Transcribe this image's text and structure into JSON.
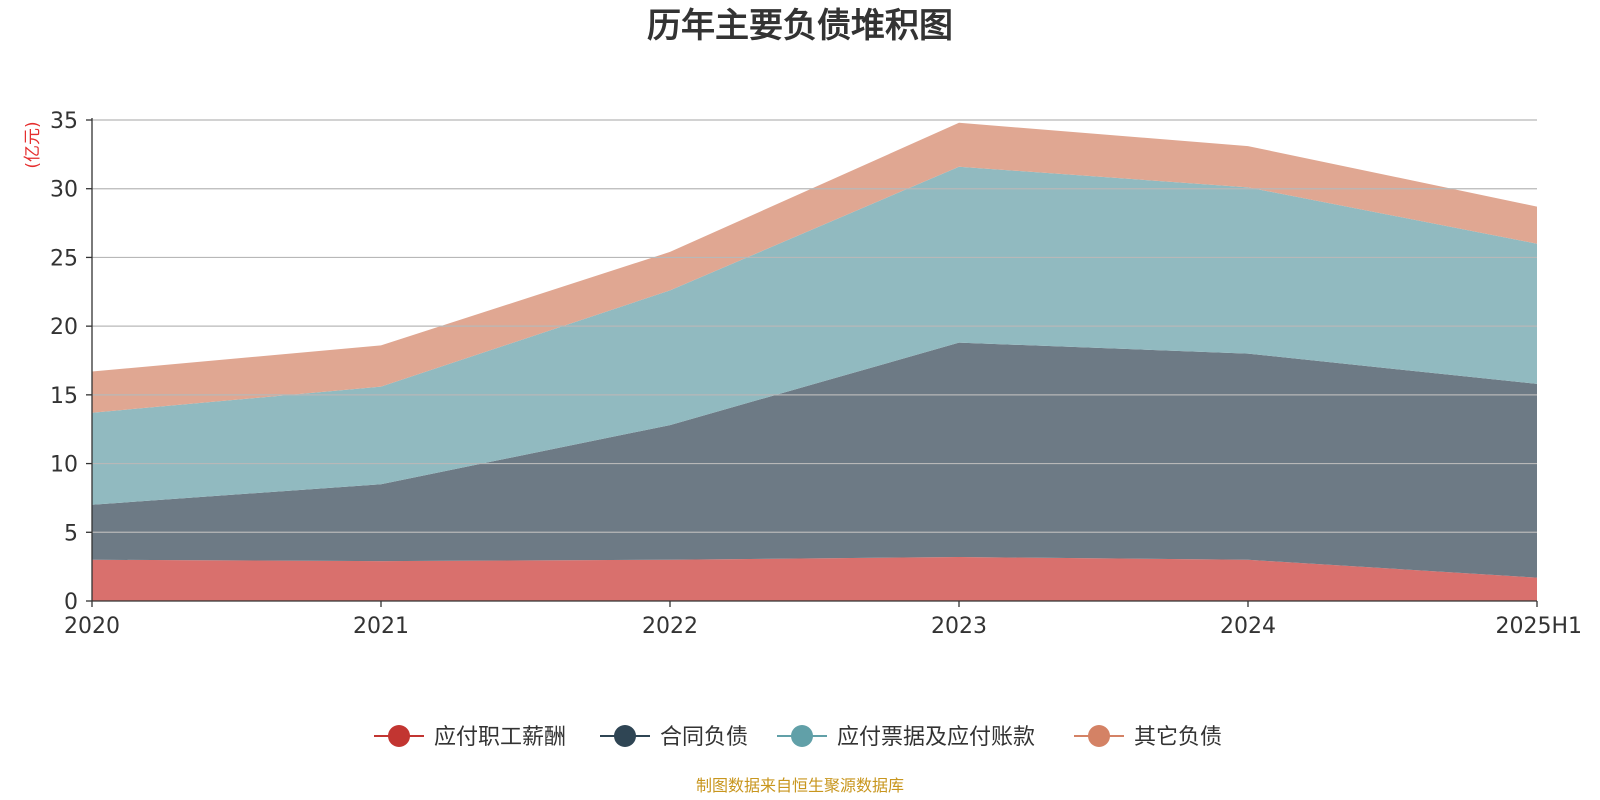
{
  "chart_data": {
    "type": "area",
    "stacked": true,
    "title": "历年主要负债堆积图",
    "unit_label": "(亿元)",
    "xlabel": "",
    "ylabel": "",
    "categories": [
      "2020",
      "2021",
      "2022",
      "2023",
      "2024",
      "2025H1"
    ],
    "ylim": [
      0,
      35
    ],
    "yticks": [
      0,
      5,
      10,
      15,
      20,
      25,
      30,
      35
    ],
    "grid": true,
    "legend_position": "bottom",
    "series": [
      {
        "name": "应付职工薪酬",
        "color": "#d9706d",
        "legend_color": "#c23531",
        "values": [
          3.0,
          2.9,
          3.0,
          3.2,
          3.0,
          1.7
        ]
      },
      {
        "name": "合同负债",
        "color": "#6d7a85",
        "legend_color": "#2f4554",
        "values": [
          4.0,
          5.6,
          9.8,
          15.6,
          15.0,
          14.1
        ]
      },
      {
        "name": "应付票据及应付账款",
        "color": "#91bac0",
        "legend_color": "#61a0a8",
        "values": [
          6.7,
          7.1,
          9.8,
          12.8,
          12.1,
          10.2
        ]
      },
      {
        "name": "其它负债",
        "color": "#e0a792",
        "legend_color": "#d48265",
        "values": [
          3.0,
          3.0,
          2.8,
          3.2,
          3.0,
          2.7
        ]
      }
    ],
    "source_note": "制图数据来自恒生聚源数据库"
  }
}
